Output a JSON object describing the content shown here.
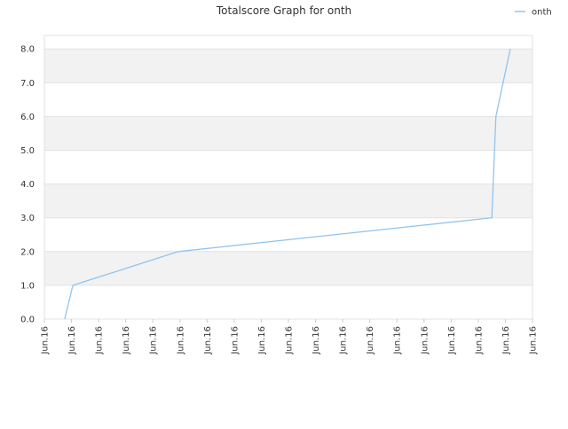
{
  "chart_data": {
    "type": "line",
    "title": "Totalscore Graph for onth",
    "x": [
      0.75,
      1.05,
      4.94,
      16.5,
      16.65,
      17.18
    ],
    "series": [
      {
        "name": "onth",
        "color": "#90c4ee",
        "values": [
          0,
          1,
          2,
          3,
          6,
          8
        ]
      }
    ],
    "xlim": [
      0,
      18
    ],
    "xticks": [
      {
        "value": 0,
        "label": "Jun.16"
      },
      {
        "value": 1,
        "label": "Jun.16"
      },
      {
        "value": 2,
        "label": "Jun.16"
      },
      {
        "value": 3,
        "label": "Jun.16"
      },
      {
        "value": 4,
        "label": "Jun.16"
      },
      {
        "value": 5,
        "label": "Jun.16"
      },
      {
        "value": 6,
        "label": "Jun.16"
      },
      {
        "value": 7,
        "label": "Jun.16"
      },
      {
        "value": 8,
        "label": "Jun.16"
      },
      {
        "value": 9,
        "label": "Jun.16"
      },
      {
        "value": 10,
        "label": "Jun.16"
      },
      {
        "value": 11,
        "label": "Jun.16"
      },
      {
        "value": 12,
        "label": "Jun.16"
      },
      {
        "value": 13,
        "label": "Jun.16"
      },
      {
        "value": 14,
        "label": "Jun.16"
      },
      {
        "value": 15,
        "label": "Jun.16"
      },
      {
        "value": 16,
        "label": "Jun.16"
      },
      {
        "value": 17,
        "label": "Jun.16"
      },
      {
        "value": 18,
        "label": "Jun.16"
      }
    ],
    "ylim": [
      0,
      8.4
    ],
    "yticks": [
      {
        "value": 0,
        "label": "0.0"
      },
      {
        "value": 1,
        "label": "1.0"
      },
      {
        "value": 2,
        "label": "2.0"
      },
      {
        "value": 3,
        "label": "3.0"
      },
      {
        "value": 4,
        "label": "4.0"
      },
      {
        "value": 5,
        "label": "5.0"
      },
      {
        "value": 6,
        "label": "6.0"
      },
      {
        "value": 7,
        "label": "7.0"
      },
      {
        "value": 8,
        "label": "8.0"
      }
    ],
    "grid": true,
    "legend": "top-right"
  }
}
